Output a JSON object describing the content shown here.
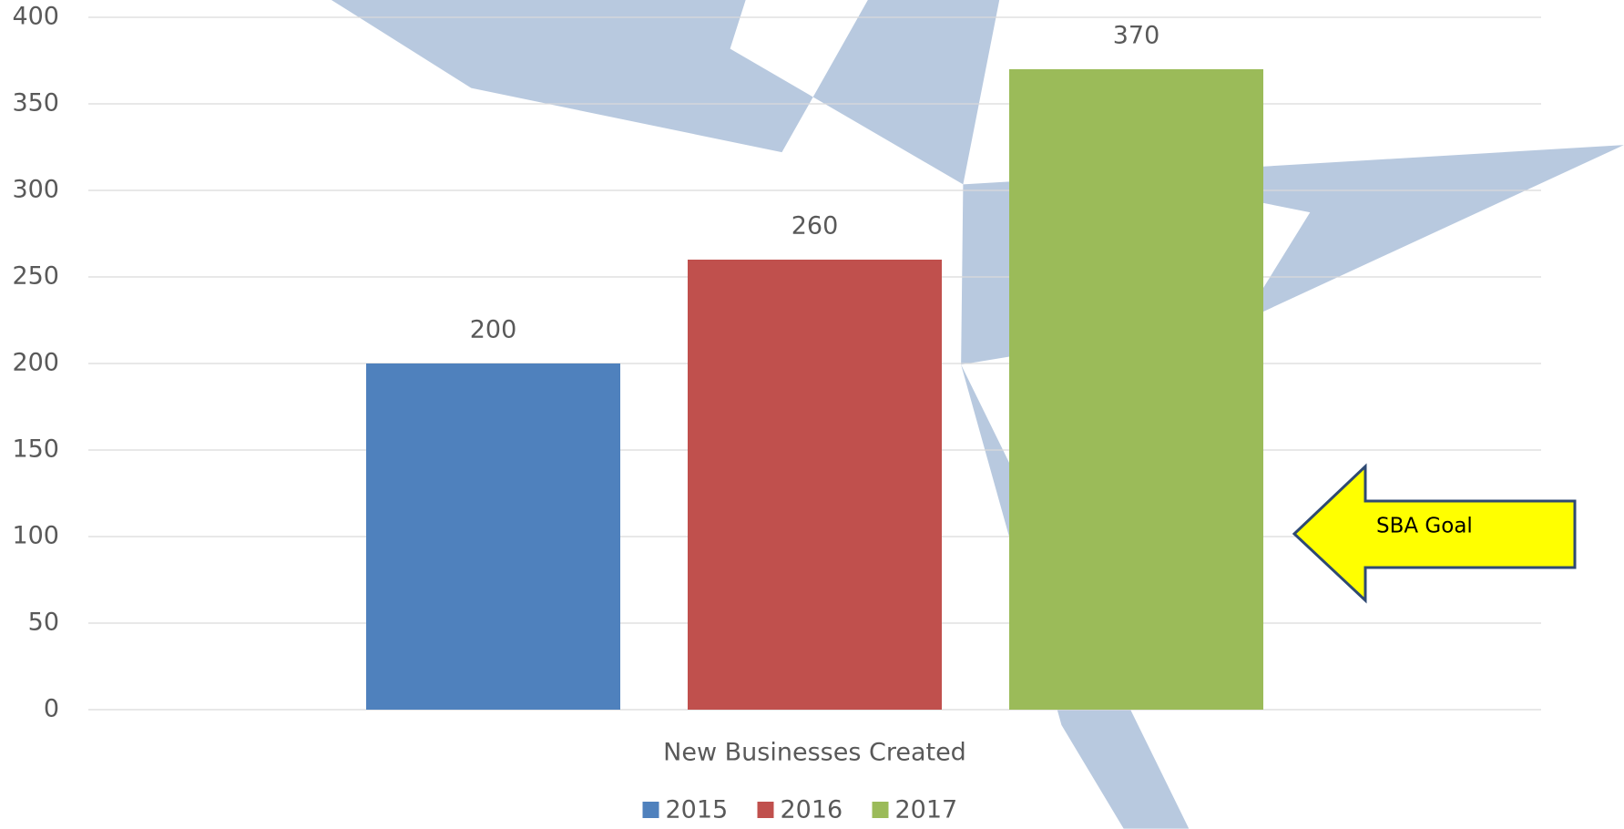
{
  "chart_data": {
    "type": "bar",
    "categories": [
      "New Businesses Created"
    ],
    "series": [
      {
        "name": "2015",
        "color": "#4f81bd",
        "values": [
          200
        ]
      },
      {
        "name": "2016",
        "color": "#c0504d",
        "values": [
          260
        ]
      },
      {
        "name": "2017",
        "color": "#9bbb59",
        "values": [
          370
        ]
      }
    ],
    "ylim": [
      0,
      400
    ],
    "yticks": [
      0,
      50,
      100,
      150,
      200,
      250,
      300,
      350,
      400
    ],
    "grid": true,
    "legend": "bottom",
    "annotations": [
      {
        "text": "SBA Goal"
      }
    ]
  }
}
